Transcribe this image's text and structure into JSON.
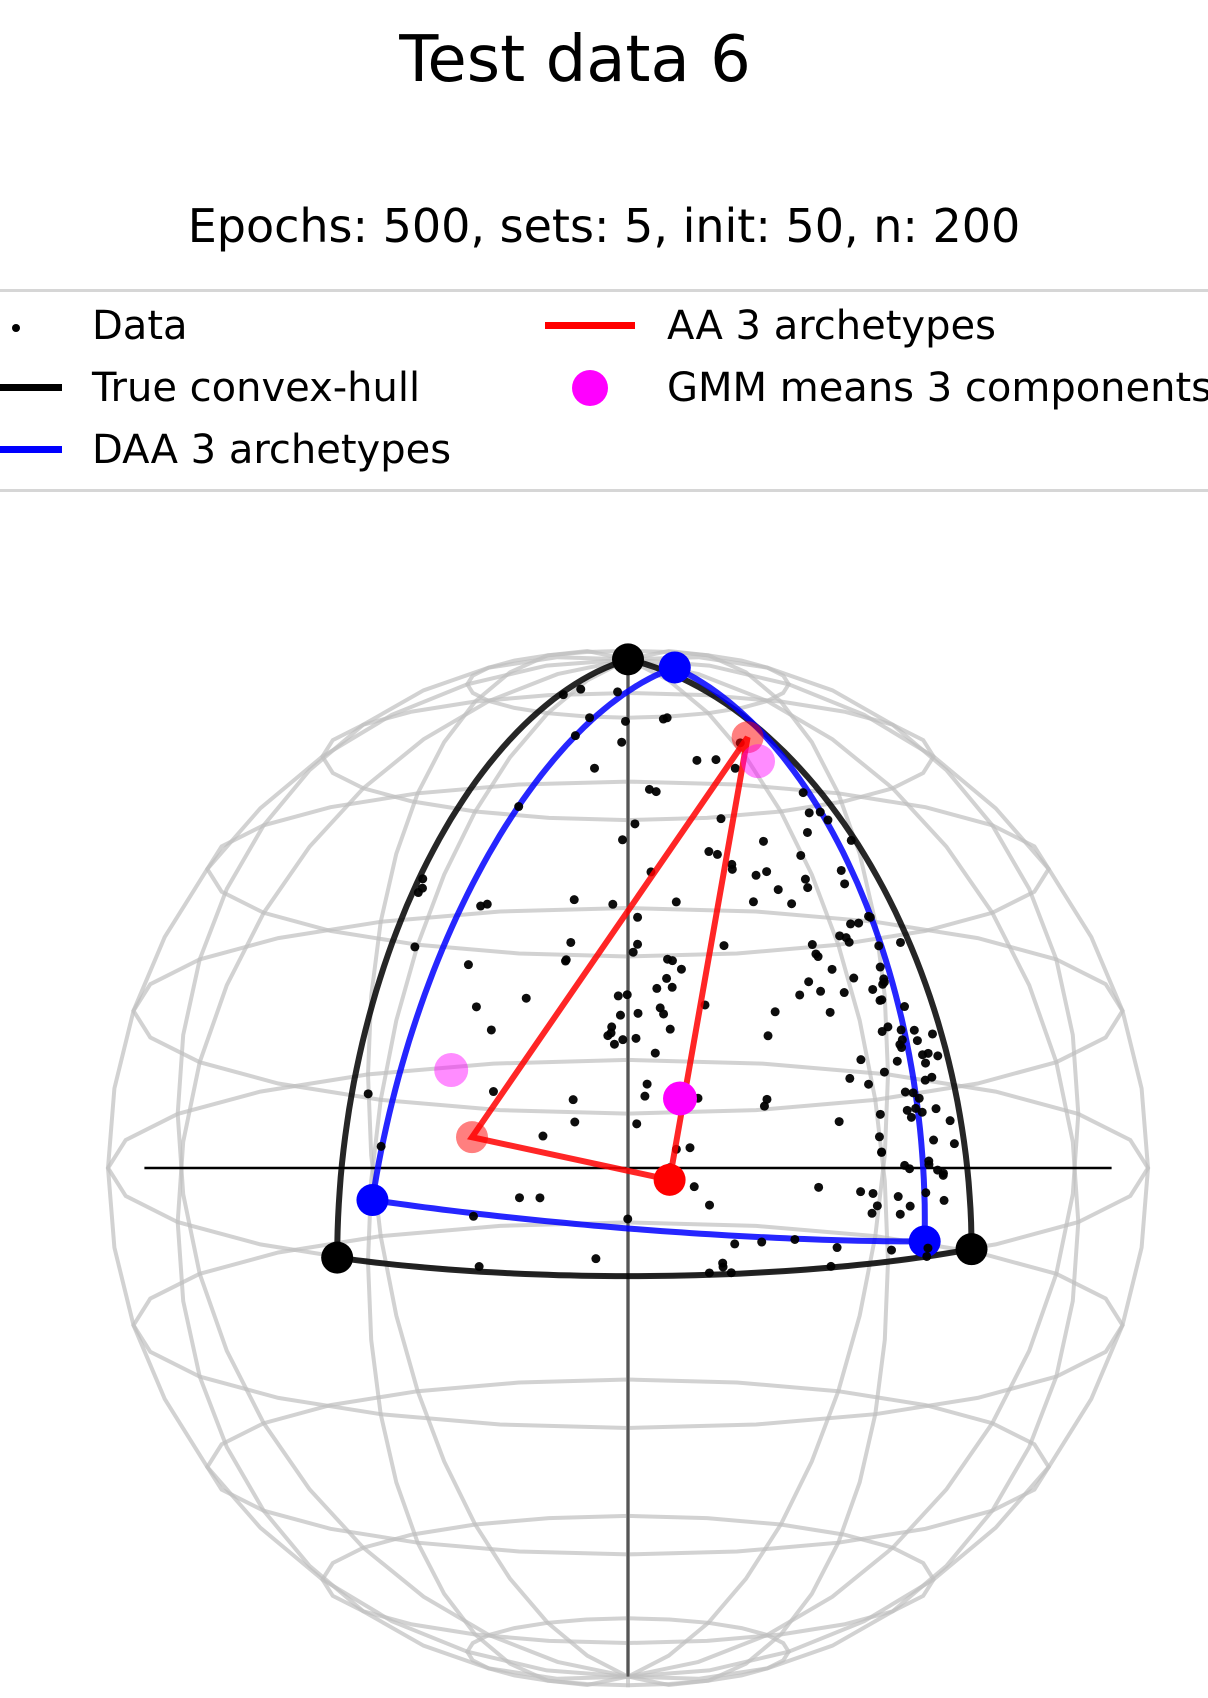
{
  "header": {
    "title": "Test data 6",
    "subtitle": "Epochs: 500, sets: 5, init: 50, n: 200"
  },
  "legend": {
    "placement": "top",
    "items": [
      {
        "label": "Data",
        "kind": "dot",
        "color": "#000000"
      },
      {
        "label": "True convex-hull",
        "kind": "line",
        "color": "#000000"
      },
      {
        "label": "DAA 3 archetypes",
        "kind": "line",
        "color": "#0000ff"
      },
      {
        "label": "AA 3 archetypes",
        "kind": "line",
        "color": "#ff0000"
      },
      {
        "label": "GMM means 3 components",
        "kind": "dot",
        "color": "#ff00ff"
      }
    ]
  },
  "chart_data": {
    "type": "scatter",
    "projection": "3d-unit-sphere",
    "grid": true,
    "sphere_wireframe": true,
    "view": {
      "elev_deg": 12,
      "azim_deg": 0
    },
    "axis_lines": true,
    "n_points": 200,
    "series": [
      {
        "name": "Data",
        "kind": "points",
        "region": "spherical triangle between the true vertices, most points near the outer edge"
      },
      {
        "name": "True convex-hull",
        "kind": "spherical-triangle",
        "vertices": [
          [
            0.0,
            0.0,
            1.0
          ],
          [
            0.75,
            0.66,
            0.0
          ],
          [
            0.83,
            -0.56,
            0.0
          ]
        ]
      },
      {
        "name": "DAA 3 archetypes",
        "kind": "spherical-triangle",
        "vertices": [
          [
            0.05,
            0.09,
            0.995
          ],
          [
            0.82,
            0.57,
            0.03
          ],
          [
            0.86,
            -0.49,
            0.12
          ]
        ]
      },
      {
        "name": "AA 3 archetypes",
        "kind": "triangle",
        "vertices": [
          [
            0.25,
            0.23,
            0.9
          ],
          [
            0.58,
            0.08,
            0.1
          ],
          [
            0.75,
            -0.3,
            0.22
          ]
        ]
      },
      {
        "name": "GMM means 3 components",
        "points": [
          [
            0.33,
            0.25,
            0.87
          ],
          [
            0.58,
            0.1,
            0.26
          ],
          [
            0.74,
            -0.34,
            0.35
          ]
        ]
      }
    ]
  }
}
